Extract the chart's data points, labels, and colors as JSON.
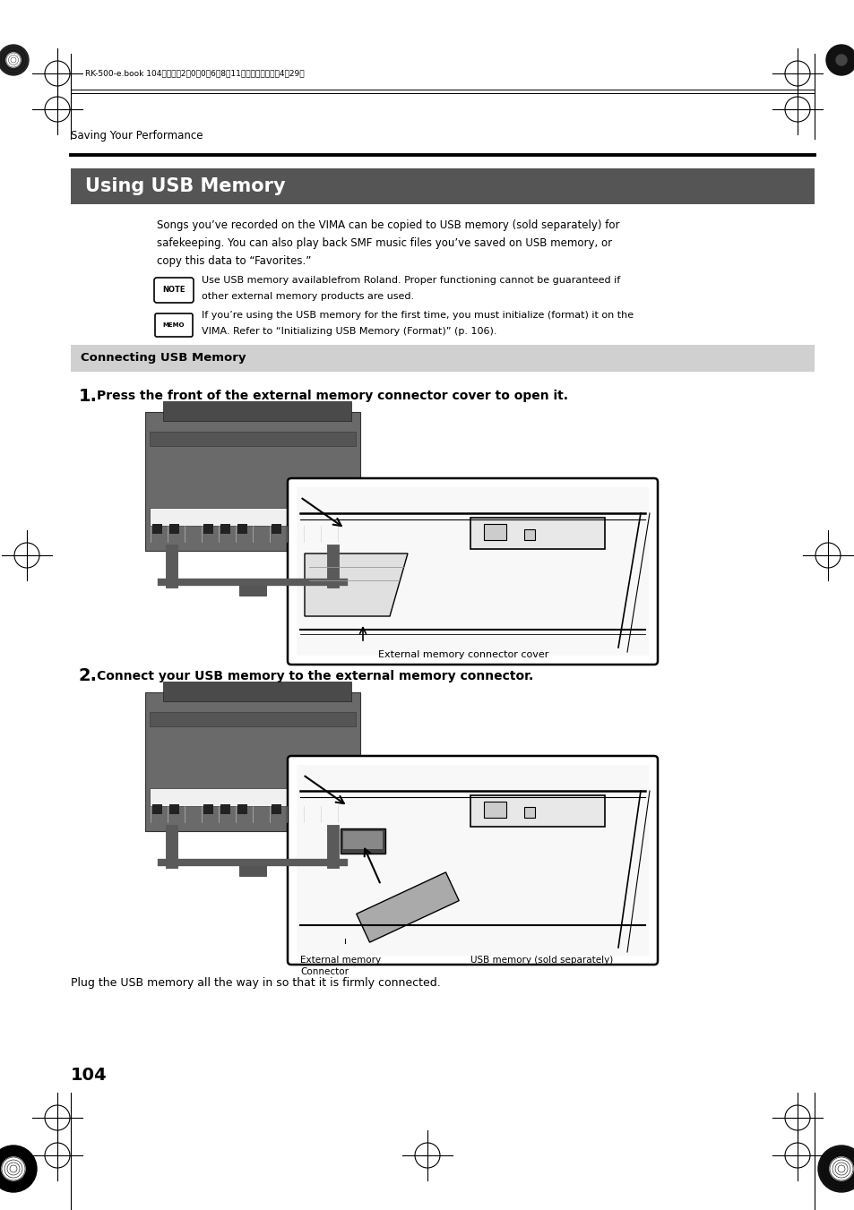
{
  "page_bg": "#ffffff",
  "header_text": "RK-500-e.book 104ページ　2〰0〰0〰6年8月11日　金曜日　午後4時29分",
  "section_label": "Saving Your Performance",
  "main_title": "Using USB Memory",
  "main_title_bg": "#555555",
  "main_title_color": "#ffffff",
  "subsection_title": "Connecting USB Memory",
  "subsection_bg": "#d0d0d0",
  "subsection_color": "#000000",
  "body_text_1": "Songs you’ve recorded on the VIMA can be copied to USB memory (sold separately) for",
  "body_text_2": "safekeeping. You can also play back SMF music files you’ve saved on USB memory, or",
  "body_text_3": "copy this data to “Favorites.”",
  "note_text_1": "Use USB memory availablefrom Roland. Proper functioning cannot be guaranteed if",
  "note_text_2": "other external memory products are used.",
  "memo_text_1": "If you’re using the USB memory for the first time, you must initialize (format) it on the",
  "memo_text_2": "VIMA. Refer to “Initializing USB Memory (Format)” (p. 106).",
  "step1_text": "Press the front of the external memory connector cover to open it.",
  "step2_text": "Connect your USB memory to the external memory connector.",
  "caption1": "External memory connector cover",
  "caption2_left": "External memory\nConnector",
  "caption2_right": "USB memory (sold separately)",
  "footer_text": "Plug the USB memory all the way in so that it is firmly connected.",
  "page_num": "104"
}
